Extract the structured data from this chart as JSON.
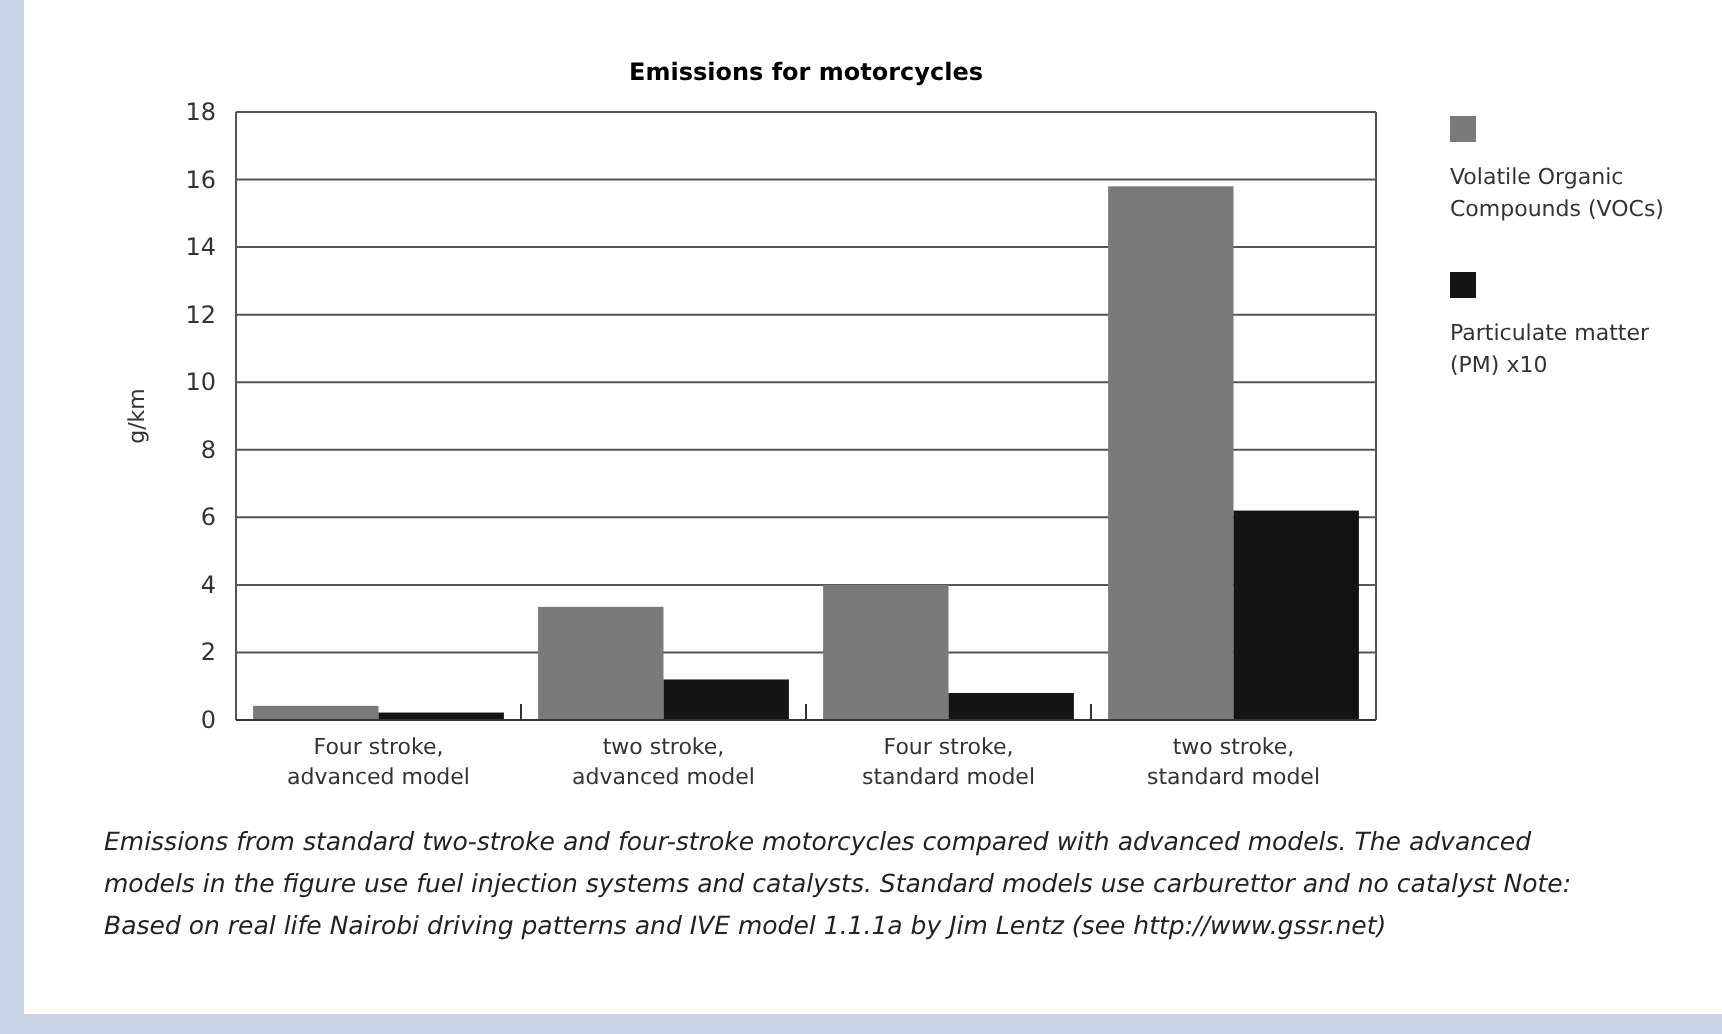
{
  "chart_data": {
    "type": "bar",
    "title": "Emissions for motorcycles",
    "ylabel": "g/km",
    "categories": [
      "Four stroke, advanced model",
      "two stroke, advanced model",
      "Four stroke, standard model",
      "two stroke, standard model"
    ],
    "series": [
      {
        "name": "Volatile Organic Compounds (VOCs)",
        "color": "#7a7a7a",
        "values": [
          0.42,
          3.35,
          4.0,
          15.8
        ]
      },
      {
        "name": "Particulate matter (PM) x10",
        "color": "#141414",
        "values": [
          0.22,
          1.2,
          0.8,
          6.2
        ]
      }
    ],
    "ylim": [
      0,
      18
    ],
    "yticks": [
      0,
      2,
      4,
      6,
      8,
      10,
      12,
      14,
      16,
      18
    ],
    "grid": "y",
    "legend": "right",
    "annotations": [
      "Emissions from standard two-stroke and four-stroke motorcycles compared with advanced models. The advanced models in the figure use fuel injection systems and catalysts. Standard models use carburettor and no catalyst Note: Based on real life Nairobi driving patterns and IVE model 1.1.1a by Jim Lentz (see http://www.gssr.net)"
    ]
  }
}
